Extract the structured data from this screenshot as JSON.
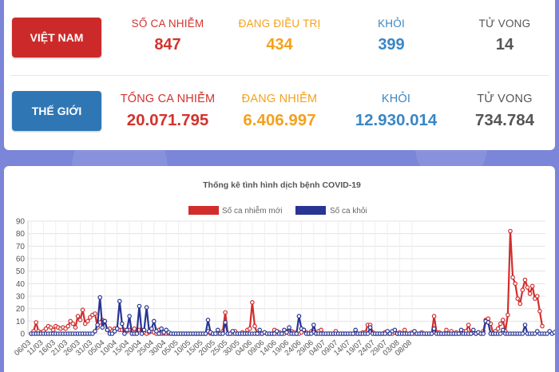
{
  "vietnam": {
    "label": "VIỆT NAM",
    "stats": [
      {
        "label": "SỐ CA NHIỄM",
        "value": "847"
      },
      {
        "label": "ĐANG ĐIỀU TRỊ",
        "value": "434"
      },
      {
        "label": "KHỎI",
        "value": "399"
      },
      {
        "label": "TỬ VONG",
        "value": "14"
      }
    ]
  },
  "world": {
    "label": "THẾ GIỚI",
    "stats": [
      {
        "label": "TỔNG CA NHIỄM",
        "value": "20.071.795"
      },
      {
        "label": "ĐANG NHIỄM",
        "value": "6.406.997"
      },
      {
        "label": "KHỎI",
        "value": "12.930.014"
      },
      {
        "label": "TỬ VONG",
        "value": "734.784"
      }
    ]
  },
  "colors": {
    "vn_badge": "#cc2a2a",
    "world_badge": "#2f77b4",
    "red": "#d2332e",
    "orange": "#f4a11c",
    "blue": "#3a86c4",
    "gray": "#555555",
    "series_new": "#d22d2d",
    "series_recovered": "#283593"
  },
  "chart_data": {
    "type": "line",
    "title": "Thống kê tình hình dịch bệnh COVID-19",
    "legend_position": "top-center",
    "grid": true,
    "ylim": [
      0,
      90
    ],
    "yticks": [
      0,
      10,
      20,
      30,
      40,
      50,
      60,
      70,
      80,
      90
    ],
    "start_date": "2020-03-06",
    "tick_labels": [
      "06/03",
      "11/03",
      "16/03",
      "21/03",
      "26/03",
      "31/03",
      "05/04",
      "10/04",
      "15/04",
      "20/04",
      "25/04",
      "30/04",
      "05/05",
      "10/05",
      "15/05",
      "20/05",
      "25/05",
      "30/05",
      "04/06",
      "09/06",
      "14/06",
      "19/06",
      "24/06",
      "29/06",
      "04/07",
      "09/07",
      "14/07",
      "19/07",
      "24/07",
      "29/07",
      "03/08",
      "08/08"
    ],
    "series": [
      {
        "name": "Số ca nhiễm mới",
        "values": [
          0,
          2,
          9,
          2,
          1,
          2,
          4,
          6,
          5,
          3,
          6,
          5,
          4,
          5,
          4,
          6,
          10,
          8,
          5,
          14,
          11,
          19,
          8,
          10,
          13,
          15,
          16,
          5,
          9,
          11,
          10,
          3,
          4,
          2,
          4,
          4,
          3,
          3,
          3,
          2,
          3,
          2,
          4,
          1,
          3,
          3,
          1,
          0,
          1,
          2,
          1,
          0,
          3,
          0,
          0,
          0,
          0,
          0,
          0,
          0,
          0,
          0,
          0,
          0,
          0,
          0,
          0,
          0,
          0,
          0,
          0,
          0,
          2,
          0,
          0,
          0,
          0,
          0,
          2,
          17,
          0,
          0,
          0,
          2,
          0,
          0,
          1,
          0,
          3,
          4,
          25,
          6,
          0,
          0,
          0,
          1,
          0,
          0,
          0,
          3,
          0,
          1,
          0,
          0,
          2,
          0,
          2,
          1,
          0,
          0,
          1,
          3,
          1,
          0,
          2,
          1,
          0,
          2,
          3,
          0,
          0,
          0,
          0,
          0,
          2,
          0,
          0,
          0,
          0,
          0,
          0,
          0,
          0,
          0,
          0,
          1,
          1,
          7,
          7,
          1,
          0,
          0,
          0,
          0,
          1,
          0,
          0,
          0,
          1,
          0,
          1,
          0,
          3,
          0,
          0,
          1,
          0,
          0,
          0,
          1,
          0,
          0,
          0,
          0,
          14,
          1,
          1,
          0,
          0,
          3,
          0,
          2,
          0,
          1,
          0,
          0,
          2,
          2,
          7,
          0,
          1,
          0,
          1,
          0,
          2,
          11,
          12,
          8,
          0,
          2,
          4,
          8,
          11,
          2,
          15,
          82,
          45,
          40,
          28,
          24,
          35,
          43,
          37,
          32,
          38,
          28,
          30,
          18,
          6
        ],
        "color": "#d22d2d"
      },
      {
        "name": "Số ca khỏi",
        "values": [
          0,
          0,
          0,
          0,
          0,
          0,
          0,
          0,
          0,
          0,
          0,
          0,
          0,
          0,
          0,
          0,
          0,
          0,
          0,
          0,
          0,
          0,
          0,
          0,
          0,
          0,
          2,
          7,
          29,
          5,
          10,
          3,
          0,
          0,
          2,
          4,
          26,
          8,
          0,
          3,
          14,
          0,
          0,
          0,
          22,
          0,
          3,
          21,
          2,
          4,
          10,
          2,
          0,
          4,
          1,
          3,
          1,
          0,
          0,
          0,
          0,
          0,
          0,
          0,
          0,
          0,
          0,
          0,
          0,
          0,
          0,
          0,
          11,
          1,
          0,
          0,
          3,
          0,
          0,
          9,
          0,
          0,
          2,
          0,
          0,
          0,
          0,
          0,
          0,
          0,
          0,
          0,
          0,
          3,
          0,
          1,
          0,
          0,
          0,
          0,
          2,
          0,
          0,
          3,
          1,
          5,
          0,
          0,
          0,
          14,
          4,
          3,
          0,
          0,
          0,
          7,
          0,
          0,
          0,
          0,
          0,
          0,
          0,
          0,
          0,
          0,
          0,
          0,
          0,
          0,
          0,
          0,
          3,
          0,
          0,
          0,
          0,
          0,
          5,
          0,
          0,
          0,
          0,
          0,
          0,
          2,
          0,
          2,
          3,
          0,
          0,
          0,
          0,
          0,
          0,
          0,
          2,
          0,
          0,
          0,
          0,
          0,
          0,
          0,
          4,
          0,
          0,
          0,
          0,
          0,
          0,
          0,
          0,
          0,
          0,
          3,
          0,
          0,
          0,
          0,
          3,
          0,
          1,
          0,
          0,
          10,
          9,
          0,
          0,
          0,
          0,
          0,
          3,
          0,
          0,
          0,
          0,
          0,
          0,
          0,
          0,
          7,
          0,
          0,
          0,
          0,
          2,
          0,
          0,
          0,
          0,
          2,
          0,
          1,
          3,
          13,
          0,
          1,
          4,
          6,
          4,
          7
        ],
        "color": "#283593"
      }
    ]
  }
}
